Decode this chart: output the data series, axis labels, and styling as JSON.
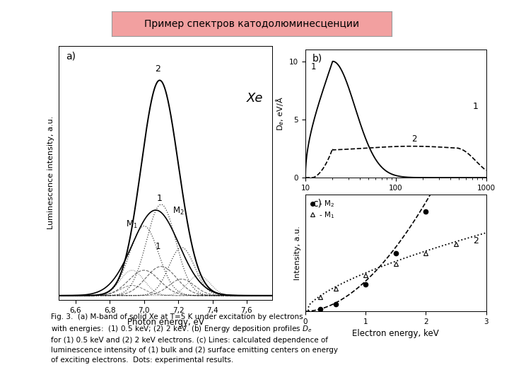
{
  "title": "Пример спектров катодолюминесценции",
  "title_bg": "#f2a0a0",
  "title_border": "#888888",
  "caption": "Fig. 3.  (a) M-band of solid Xe at T=5 K under excitation by electrons\nwith energies:  (1) 0.5 keV; (2) 2 keV. (b) Energy deposition profiles $D_e$\nfor (1) 0.5 keV and (2) 2 keV electrons. (c) Lines: calculated dependence of\nluminescence intensity of (1) bulk and (2) surface emitting centers on energy\nof exciting electrons.  Dots: experimental results.",
  "bg_color": "#ffffff",
  "panel_bg": "#ffffff"
}
